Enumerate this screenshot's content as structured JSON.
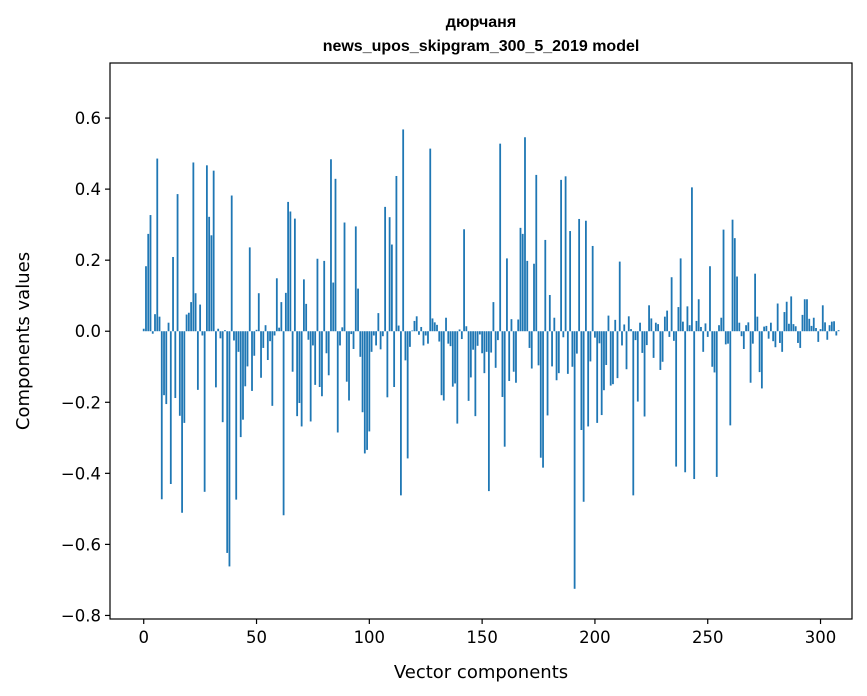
{
  "chart_data": {
    "type": "bar",
    "title": "дюрчаня",
    "subtitle": "news_upos_skipgram_300_5_2019 model",
    "xlabel": "Vector components",
    "ylabel": "Components values",
    "xlim": [
      -14.95,
      313.95
    ],
    "ylim": [
      -0.81,
      0.755
    ],
    "xticks": [
      0,
      50,
      100,
      150,
      200,
      250,
      300
    ],
    "yticks": [
      -0.8,
      -0.6,
      -0.4,
      -0.2,
      0.0,
      0.2,
      0.4,
      0.6
    ],
    "xtick_labels": [
      "0",
      "50",
      "100",
      "150",
      "200",
      "250",
      "300"
    ],
    "ytick_labels": [
      "−0.8",
      "−0.6",
      "−0.4",
      "−0.2",
      "0.0",
      "0.2",
      "0.4",
      "0.6"
    ],
    "bar_color": "#1f77b4",
    "grid": false,
    "values": [
      0.007,
      0.183,
      0.274,
      0.327,
      -0.007,
      0.048,
      0.486,
      0.041,
      -0.473,
      -0.18,
      -0.205,
      0.024,
      -0.43,
      0.209,
      -0.188,
      0.386,
      -0.238,
      -0.511,
      -0.258,
      0.047,
      0.052,
      0.082,
      0.475,
      0.107,
      -0.165,
      0.075,
      -0.012,
      -0.452,
      0.467,
      0.322,
      0.27,
      0.452,
      -0.158,
      0.007,
      -0.02,
      -0.256,
      0.003,
      -0.624,
      -0.662,
      0.382,
      -0.026,
      -0.474,
      -0.058,
      -0.298,
      -0.249,
      -0.155,
      -0.099,
      0.236,
      -0.168,
      -0.069,
      0.004,
      0.107,
      -0.131,
      -0.047,
      0.017,
      -0.081,
      -0.028,
      -0.21,
      -0.012,
      0.149,
      0.01,
      0.082,
      -0.518,
      0.108,
      0.364,
      0.337,
      -0.114,
      0.317,
      -0.239,
      -0.202,
      -0.268,
      0.146,
      0.077,
      -0.024,
      -0.254,
      -0.04,
      -0.151,
      0.204,
      -0.157,
      -0.183,
      0.198,
      -0.062,
      -0.124,
      0.484,
      0.137,
      0.429,
      -0.285,
      -0.04,
      0.011,
      0.306,
      -0.142,
      -0.195,
      -0.008,
      -0.05,
      0.295,
      0.12,
      -0.072,
      -0.228,
      -0.344,
      -0.334,
      -0.282,
      -0.058,
      -0.012,
      -0.04,
      0.051,
      -0.051,
      -0.014,
      0.35,
      -0.186,
      0.321,
      0.244,
      -0.157,
      0.437,
      0.016,
      -0.462,
      0.568,
      -0.082,
      -0.358,
      -0.044,
      0.002,
      0.029,
      0.042,
      -0.01,
      0.012,
      -0.04,
      -0.012,
      -0.035,
      0.514,
      0.036,
      0.025,
      0.018,
      -0.029,
      -0.18,
      -0.195,
      0.038,
      -0.035,
      -0.042,
      -0.156,
      -0.147,
      -0.26,
      0.005,
      -0.022,
      0.287,
      0.014,
      -0.196,
      -0.13,
      -0.052,
      -0.239,
      -0.041,
      -0.009,
      -0.062,
      -0.118,
      -0.058,
      -0.45,
      -0.06,
      0.082,
      -0.103,
      -0.025,
      0.528,
      -0.185,
      -0.325,
      0.205,
      -0.14,
      0.034,
      -0.114,
      -0.145,
      0.033,
      0.291,
      0.274,
      0.546,
      0.198,
      -0.047,
      -0.105,
      0.19,
      0.44,
      -0.096,
      -0.356,
      -0.384,
      0.257,
      -0.237,
      0.102,
      -0.099,
      0.038,
      -0.138,
      -0.118,
      0.426,
      -0.017,
      0.436,
      -0.12,
      0.282,
      -0.1,
      -0.725,
      -0.063,
      0.316,
      -0.278,
      -0.48,
      0.311,
      -0.268,
      -0.085,
      0.24,
      -0.018,
      -0.258,
      -0.034,
      -0.236,
      -0.166,
      -0.095,
      0.044,
      -0.153,
      -0.149,
      0.032,
      -0.132,
      0.196,
      -0.04,
      0.019,
      -0.107,
      0.042,
      0.006,
      -0.462,
      -0.025,
      -0.198,
      0.024,
      -0.061,
      -0.24,
      -0.039,
      0.073,
      0.036,
      -0.075,
      0.024,
      0.02,
      -0.109,
      -0.086,
      0.041,
      0.058,
      -0.016,
      0.152,
      -0.027,
      -0.381,
      0.068,
      0.205,
      0.027,
      -0.397,
      0.07,
      0.017,
      0.405,
      -0.416,
      0.029,
      0.09,
      0.012,
      -0.058,
      0.022,
      -0.016,
      0.183,
      -0.1,
      -0.116,
      -0.41,
      0.017,
      0.038,
      0.286,
      -0.037,
      -0.035,
      -0.265,
      0.314,
      0.262,
      0.154,
      0.024,
      -0.014,
      -0.05,
      0.017,
      0.025,
      -0.145,
      -0.035,
      0.162,
      0.041,
      -0.115,
      -0.161,
      0.013,
      0.015,
      -0.021,
      0.024,
      -0.028,
      -0.045,
      0.078,
      -0.033,
      -0.058,
      0.054,
      0.083,
      0.021,
      0.098,
      0.02,
      0.014,
      -0.033,
      -0.047,
      0.046,
      0.09,
      0.09,
      0.035,
      0.015,
      0.038,
      0.009,
      -0.03,
      0.006,
      0.073,
      0.025,
      -0.024,
      0.017,
      0.027,
      0.028,
      -0.012,
      0.003
    ]
  }
}
